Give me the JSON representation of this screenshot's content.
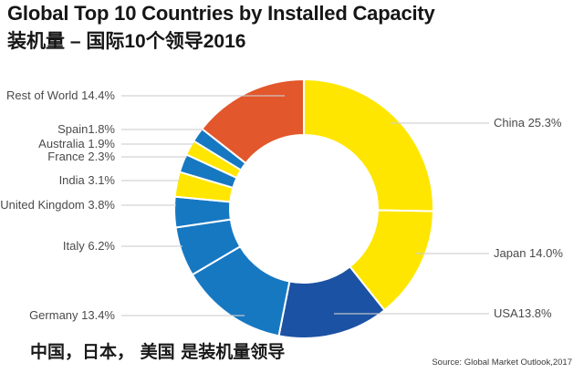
{
  "header": {
    "title": "Global Top 10 Countries by Installed Capacity",
    "subtitle": "装机量 – 国际10个领导2016"
  },
  "chart_data": {
    "type": "pie",
    "variant": "donut",
    "title": "Global Top 10 Countries by Installed Capacity",
    "subtitle": "装机量 – 国际10个领导2016",
    "unit": "%",
    "order": "clockwise-from-top",
    "legend": "none",
    "categories": [
      "China",
      "Japan",
      "USA",
      "Germany",
      "Italy",
      "United Kingdom",
      "India",
      "France",
      "Australia",
      "Spain",
      "Rest of World"
    ],
    "values": [
      25.3,
      14.0,
      13.8,
      13.4,
      6.2,
      3.8,
      3.1,
      2.3,
      1.9,
      1.8,
      14.4
    ],
    "display_labels": [
      "China 25.3%",
      "Japan 14.0%",
      "USA13.8%",
      "Germany 13.4%",
      "Italy 6.2%",
      "United Kingdom 3.8%",
      "India 3.1%",
      "France 2.3%",
      "Australia 1.9%",
      "Spain1.8%",
      "Rest of World 14.4%"
    ],
    "colors": [
      "#FFE600",
      "#FFE600",
      "#1C52A3",
      "#1778C2",
      "#1778C2",
      "#1778C2",
      "#FFE600",
      "#1778C2",
      "#FFE600",
      "#1778C2",
      "#E2572B"
    ],
    "slice_border_color": "#ffffff",
    "leader_line_color": "#cfcfcf"
  },
  "footer": {
    "note_zh": "中国，日本， 美国 是装机量领导",
    "source": "Source: Global Market Outlook,2017"
  }
}
